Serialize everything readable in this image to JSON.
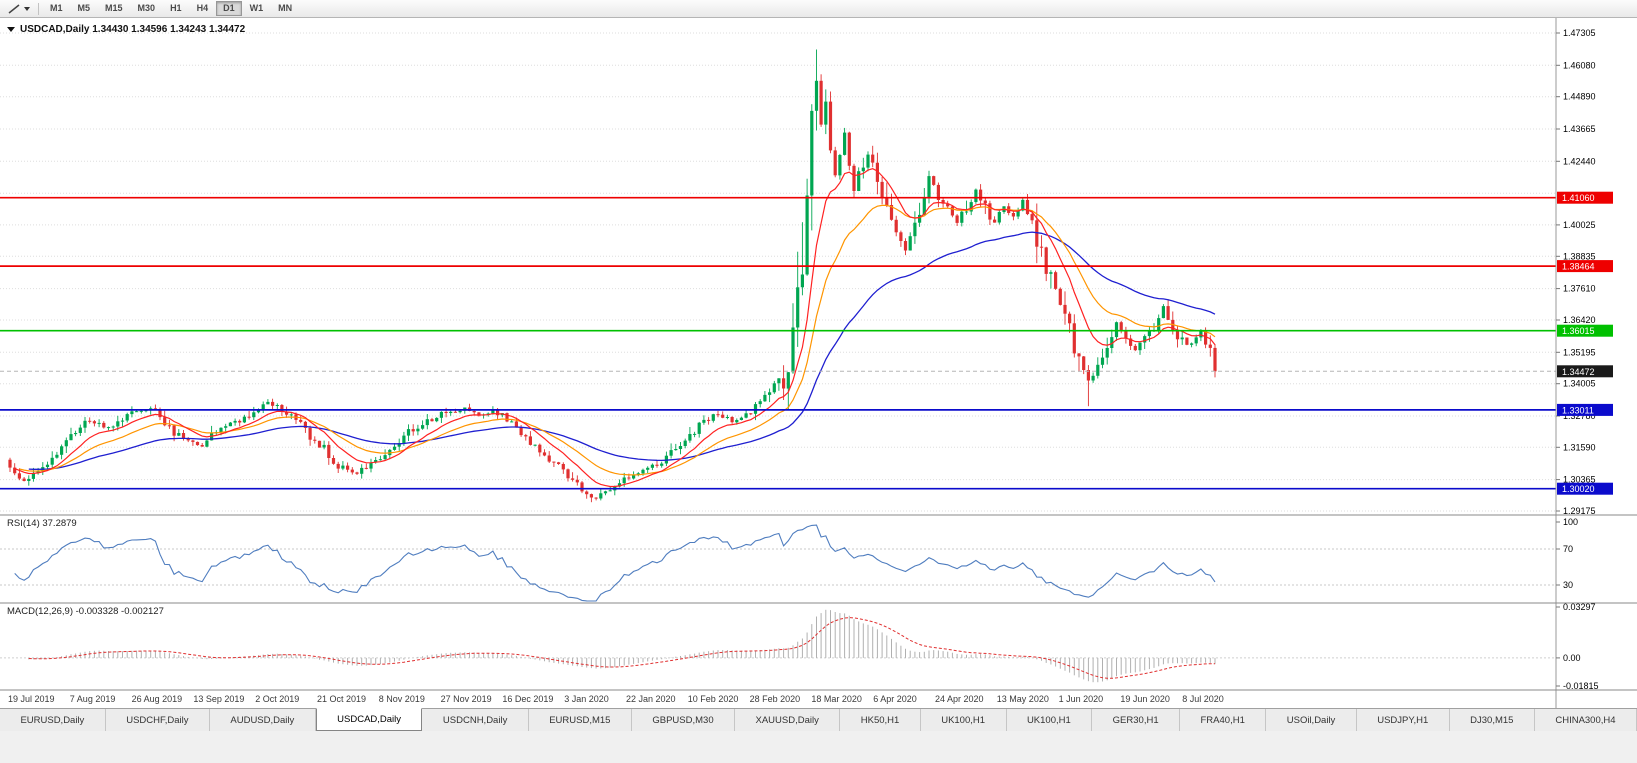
{
  "toolbar": {
    "timeframes": [
      "M1",
      "M5",
      "M15",
      "M30",
      "H1",
      "H4",
      "D1",
      "W1",
      "MN"
    ],
    "active_timeframe": "D1"
  },
  "chart": {
    "title": "USDCAD,Daily 1.34430 1.34596 1.34243 1.34472",
    "symbol": "USDCAD",
    "period": "Daily"
  },
  "indicators": {
    "rsi_label": "RSI(14) 37.2879",
    "macd_label": "MACD(12,26,9) -0.003328 -0.002127"
  },
  "tabs": {
    "items": [
      "EURUSD,Daily",
      "USDCHF,Daily",
      "AUDUSD,Daily",
      "USDCAD,Daily",
      "USDCNH,Daily",
      "EURUSD,M15",
      "GBPUSD,M30",
      "XAUUSD,Daily",
      "HK50,H1",
      "UK100,H1",
      "UK100,H1",
      "GER30,H1",
      "FRA40,H1",
      "USOil,Daily",
      "USDJPY,H1",
      "DJ30,M15",
      "CHINA300,H4"
    ],
    "active_index": 3
  },
  "chart_data": {
    "type": "candlestick",
    "symbol": "USDCAD",
    "timeframe": "Daily",
    "ohlc_current": {
      "open": 1.3443,
      "high": 1.34596,
      "low": 1.34243,
      "close": 1.34472
    },
    "current_price": 1.34472,
    "y_axis_ticks": [
      1.47305,
      1.4608,
      1.4489,
      1.43665,
      1.4244,
      1.40025,
      1.38835,
      1.3761,
      1.3642,
      1.35195,
      1.34005,
      1.3278,
      1.3159,
      1.30365,
      1.29175
    ],
    "y_axis_grid_extra": [
      1.4123
    ],
    "x_axis_labels": [
      "19 Jul 2019",
      "7 Aug 2019",
      "26 Aug 2019",
      "13 Sep 2019",
      "2 Oct 2019",
      "21 Oct 2019",
      "8 Nov 2019",
      "27 Nov 2019",
      "16 Dec 2019",
      "3 Jan 2020",
      "22 Jan 2020",
      "10 Feb 2020",
      "28 Feb 2020",
      "18 Mar 2020",
      "6 Apr 2020",
      "24 Apr 2020",
      "13 May 2020",
      "1 Jun 2020",
      "19 Jun 2020",
      "8 Jul 2020"
    ],
    "horizontal_levels": [
      {
        "price": 1.4106,
        "color": "#ee0000"
      },
      {
        "price": 1.38464,
        "color": "#ee0000"
      },
      {
        "price": 1.36015,
        "color": "#00c000"
      },
      {
        "price": 1.33011,
        "color": "#0b0bcc"
      },
      {
        "price": 1.3002,
        "color": "#0b0bcc"
      }
    ],
    "colors": {
      "bull": "#00a651",
      "bear": "#e03030",
      "ma_fast": "#ff2222",
      "ma_mid": "#ff9500",
      "ma_slow": "#1f1fd0",
      "rsi_line": "#4f7dbf",
      "macd_hist": "#b0b0b0",
      "macd_signal": "#e03030",
      "grid": "#dedede",
      "current_price_box": "#1a1a1a"
    },
    "moving_average_periods": {
      "fast": 10,
      "mid": 21,
      "slow": 50
    },
    "candle_count": 258,
    "price_waypoints": [
      [
        0,
        1.3075
      ],
      [
        3,
        1.3035
      ],
      [
        7,
        1.309
      ],
      [
        11,
        1.316
      ],
      [
        14,
        1.3215
      ],
      [
        17,
        1.3265
      ],
      [
        20,
        1.323
      ],
      [
        24,
        1.327
      ],
      [
        27,
        1.33
      ],
      [
        30,
        1.331
      ],
      [
        33,
        1.3245
      ],
      [
        37,
        1.3185
      ],
      [
        41,
        1.317
      ],
      [
        44,
        1.3215
      ],
      [
        48,
        1.325
      ],
      [
        52,
        1.3295
      ],
      [
        55,
        1.333
      ],
      [
        58,
        1.33
      ],
      [
        61,
        1.326
      ],
      [
        64,
        1.32
      ],
      [
        67,
        1.315
      ],
      [
        70,
        1.3085
      ],
      [
        74,
        1.3055
      ],
      [
        78,
        1.311
      ],
      [
        82,
        1.317
      ],
      [
        86,
        1.323
      ],
      [
        90,
        1.327
      ],
      [
        94,
        1.3295
      ],
      [
        97,
        1.331
      ],
      [
        100,
        1.3285
      ],
      [
        103,
        1.33
      ],
      [
        106,
        1.327
      ],
      [
        109,
        1.322
      ],
      [
        112,
        1.316
      ],
      [
        115,
        1.312
      ],
      [
        118,
        1.306
      ],
      [
        121,
        1.301
      ],
      [
        124,
        1.2965
      ],
      [
        127,
        1.2985
      ],
      [
        130,
        1.303
      ],
      [
        133,
        1.3055
      ],
      [
        136,
        1.308
      ],
      [
        139,
        1.311
      ],
      [
        142,
        1.315
      ],
      [
        145,
        1.32
      ],
      [
        148,
        1.3255
      ],
      [
        151,
        1.329
      ],
      [
        154,
        1.326
      ],
      [
        157,
        1.329
      ],
      [
        160,
        1.332
      ],
      [
        162,
        1.339
      ],
      [
        164,
        1.343
      ],
      [
        165,
        1.338
      ],
      [
        166,
        1.344
      ],
      [
        167,
        1.355
      ],
      [
        168,
        1.37
      ],
      [
        169,
        1.39
      ],
      [
        170,
        1.415
      ],
      [
        171,
        1.445
      ],
      [
        172,
        1.452
      ],
      [
        173,
        1.438
      ],
      [
        174,
        1.447
      ],
      [
        175,
        1.431
      ],
      [
        176,
        1.417
      ],
      [
        177,
        1.426
      ],
      [
        178,
        1.434
      ],
      [
        179,
        1.424
      ],
      [
        180,
        1.415
      ],
      [
        181,
        1.42
      ],
      [
        183,
        1.428
      ],
      [
        185,
        1.418
      ],
      [
        187,
        1.408
      ],
      [
        189,
        1.398
      ],
      [
        191,
        1.39
      ],
      [
        193,
        1.4
      ],
      [
        195,
        1.412
      ],
      [
        196,
        1.42
      ],
      [
        198,
        1.411
      ],
      [
        200,
        1.406
      ],
      [
        202,
        1.401
      ],
      [
        204,
        1.407
      ],
      [
        206,
        1.413
      ],
      [
        208,
        1.406
      ],
      [
        210,
        1.401
      ],
      [
        212,
        1.408
      ],
      [
        214,
        1.403
      ],
      [
        216,
        1.409
      ],
      [
        218,
        1.399
      ],
      [
        220,
        1.39
      ],
      [
        222,
        1.38
      ],
      [
        224,
        1.37
      ],
      [
        226,
        1.36
      ],
      [
        228,
        1.349
      ],
      [
        230,
        1.34
      ],
      [
        232,
        1.345
      ],
      [
        234,
        1.356
      ],
      [
        236,
        1.363
      ],
      [
        238,
        1.356
      ],
      [
        240,
        1.353
      ],
      [
        242,
        1.357
      ],
      [
        244,
        1.361
      ],
      [
        246,
        1.369
      ],
      [
        248,
        1.361
      ],
      [
        250,
        1.356
      ],
      [
        252,
        1.3545
      ],
      [
        254,
        1.3595
      ],
      [
        256,
        1.3545
      ],
      [
        257,
        1.3447
      ]
    ],
    "key_extremes": {
      "march_high": [
        172,
        1.4668
      ],
      "june_low": [
        230,
        1.3315
      ],
      "jan_low": [
        124,
        1.2951
      ]
    },
    "rsi": {
      "label": "RSI(14)",
      "value": "37.2879",
      "period": 14,
      "axis": [
        {
          "label": "100",
          "value": 100
        },
        {
          "label": "70",
          "value": 70
        },
        {
          "label": "30",
          "value": 30
        }
      ],
      "levels": [
        70,
        30
      ]
    },
    "macd": {
      "label": "MACD(12,26,9)",
      "values": "-0.003328 -0.002127",
      "fast": 12,
      "slow": 26,
      "signal": 9,
      "axis": [
        {
          "label": "0.03297",
          "value": 0.03297
        },
        {
          "label": "0.00",
          "value": 0
        },
        {
          "label": "-0.01815",
          "value": -0.01815
        }
      ]
    }
  }
}
